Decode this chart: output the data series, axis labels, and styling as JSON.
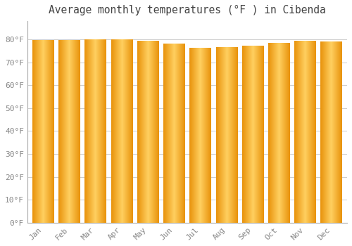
{
  "title": "Average monthly temperatures (°F ) in Cibenda",
  "months": [
    "Jan",
    "Feb",
    "Mar",
    "Apr",
    "May",
    "Jun",
    "Jul",
    "Aug",
    "Sep",
    "Oct",
    "Nov",
    "Dec"
  ],
  "values": [
    79.5,
    79.7,
    79.8,
    79.8,
    79.3,
    78.1,
    76.3,
    76.5,
    77.3,
    78.4,
    79.3,
    79.1
  ],
  "bar_color_center": "#FFD060",
  "bar_color_edge": "#E8920A",
  "background_color": "#FFFFFF",
  "grid_color": "#CCCCCC",
  "text_color": "#888888",
  "ylim": [
    0,
    88
  ],
  "yticks": [
    0,
    10,
    20,
    30,
    40,
    50,
    60,
    70,
    80
  ],
  "ytick_labels": [
    "0°F",
    "10°F",
    "20°F",
    "30°F",
    "40°F",
    "50°F",
    "60°F",
    "70°F",
    "80°F"
  ],
  "title_fontsize": 10.5,
  "tick_fontsize": 8,
  "font_family": "monospace"
}
